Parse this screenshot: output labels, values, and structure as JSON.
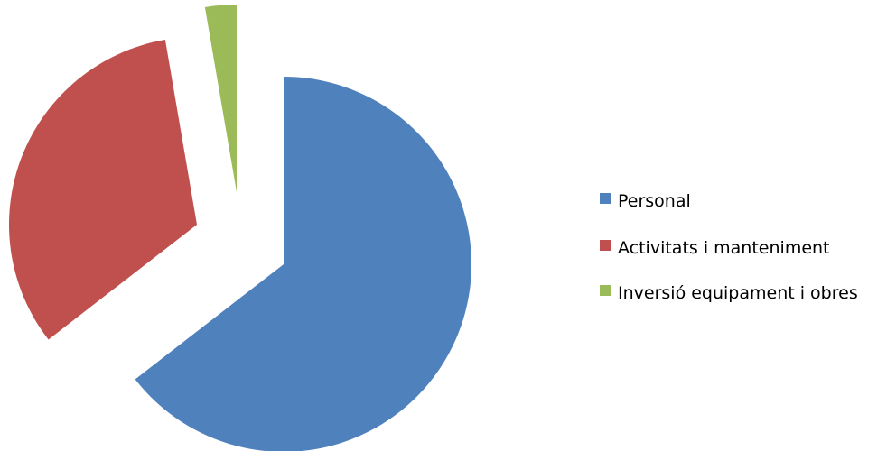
{
  "chart_data": {
    "type": "pie",
    "exploded": true,
    "legend_position": "right",
    "categories": [
      "Personal",
      "Activitats i manteniment",
      "Inversió equipament i obres"
    ],
    "values": [
      64.5,
      32.8,
      2.7
    ],
    "colors": [
      "#4F81BD",
      "#C0504D",
      "#9BBB59"
    ]
  }
}
